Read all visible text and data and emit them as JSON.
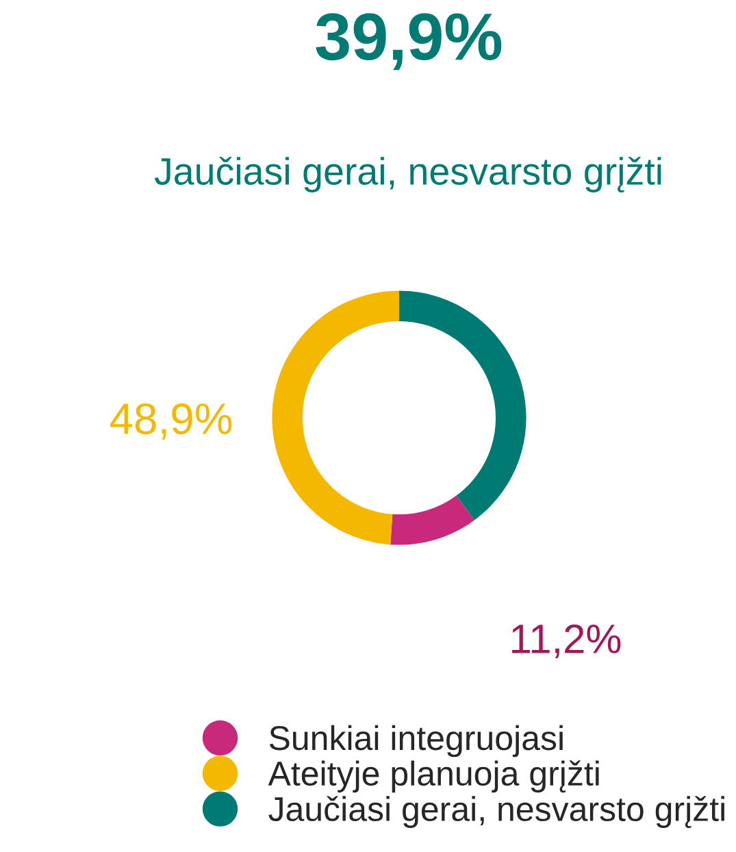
{
  "chart_data": {
    "type": "donut",
    "categories": [
      "Sunkiai integruojasi",
      "Ateityje planuoja grįžti",
      "Jaučiasi gerai, nesvarsto grįžti"
    ],
    "values": [
      11.2,
      48.9,
      39.9
    ],
    "colors": [
      "#c8297a",
      "#f5b800",
      "#007b73"
    ],
    "value_labels": [
      "11,2%",
      "48,9%",
      "39,9%"
    ],
    "annotations": [
      "Jaučiasi gerai, nesvarsto grįžti"
    ],
    "legend": "bottom"
  }
}
